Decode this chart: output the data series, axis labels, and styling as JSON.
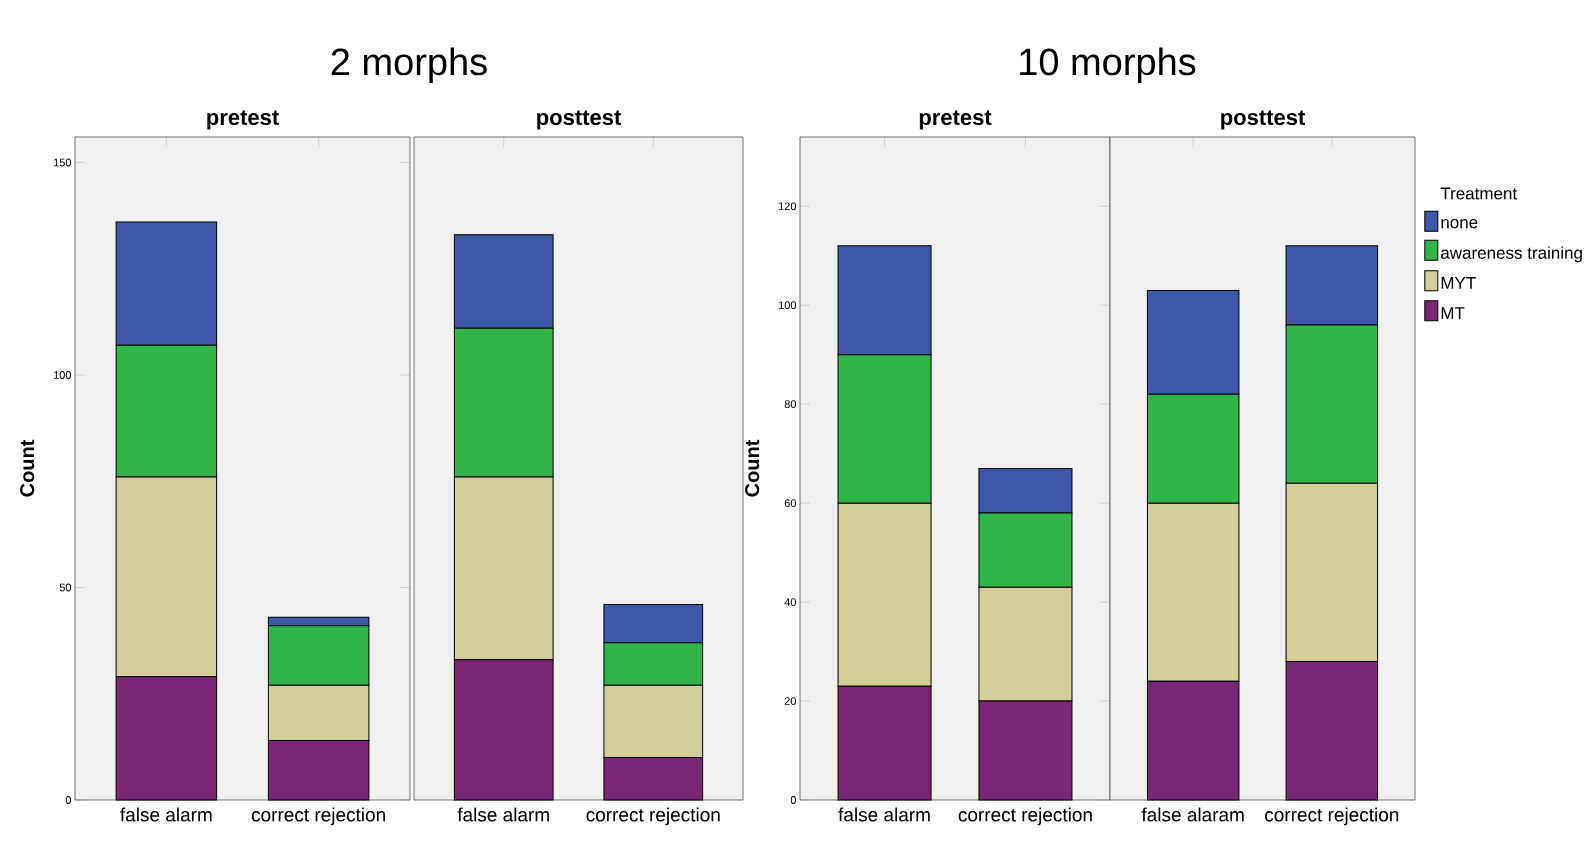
{
  "chart_data": [
    {
      "type": "bar",
      "stacked": true,
      "title": "2 morphs",
      "subtitle": "pretest",
      "ylabel": "Count",
      "categories": [
        "false alarm",
        "correct rejection"
      ],
      "ylim": [
        0,
        156
      ],
      "yticks": [
        0,
        50,
        100,
        150
      ],
      "series": [
        {
          "color": "#7b2779",
          "values": [
            29,
            14
          ]
        },
        {
          "color": "#d3cd97",
          "values": [
            47,
            13
          ]
        },
        {
          "color": "#2fb548",
          "values": [
            31,
            14
          ]
        },
        {
          "color": "#3c58a8",
          "values": [
            29,
            2
          ]
        }
      ]
    },
    {
      "type": "bar",
      "stacked": true,
      "subtitle": "posttest",
      "categories": [
        "false alarm",
        "correct rejection"
      ],
      "ylim": [
        0,
        156
      ],
      "tick_labels": "x",
      "series": [
        {
          "color": "#7b2779",
          "values": [
            33,
            10
          ]
        },
        {
          "color": "#d3cd97",
          "values": [
            43,
            17
          ]
        },
        {
          "color": "#2fb548",
          "values": [
            35,
            10
          ]
        },
        {
          "color": "#3c58a8",
          "values": [
            22,
            9
          ]
        }
      ]
    },
    {
      "type": "bar",
      "stacked": true,
      "title": "10 morphs",
      "subtitle": "pretest",
      "ylabel": "Count",
      "categories": [
        "false alarm",
        "correct rejection"
      ],
      "ylim": [
        0,
        134
      ],
      "yticks": [
        0,
        20,
        40,
        60,
        80,
        100,
        120
      ],
      "series": [
        {
          "color": "#7b2779",
          "values": [
            23,
            20
          ]
        },
        {
          "color": "#d3cd97",
          "values": [
            37,
            23
          ]
        },
        {
          "color": "#2fb548",
          "values": [
            30,
            15
          ]
        },
        {
          "color": "#3c58a8",
          "values": [
            22,
            9
          ]
        }
      ]
    },
    {
      "type": "bar",
      "stacked": true,
      "subtitle": "posttest",
      "categories": [
        "false alaram",
        "correct rejection"
      ],
      "ylim": [
        0,
        134
      ],
      "tick_labels": "x",
      "legend": "right",
      "legend_title": "Treatment",
      "series": [
        {
          "name": "MT",
          "color": "#7b2779",
          "values": [
            24,
            28
          ]
        },
        {
          "name": "MYT",
          "color": "#d3cd97",
          "values": [
            36,
            36
          ]
        },
        {
          "name": "awareness training",
          "color": "#2fb548",
          "values": [
            22,
            32
          ]
        },
        {
          "name": "none",
          "color": "#3c58a8",
          "values": [
            21,
            16
          ]
        }
      ]
    }
  ]
}
